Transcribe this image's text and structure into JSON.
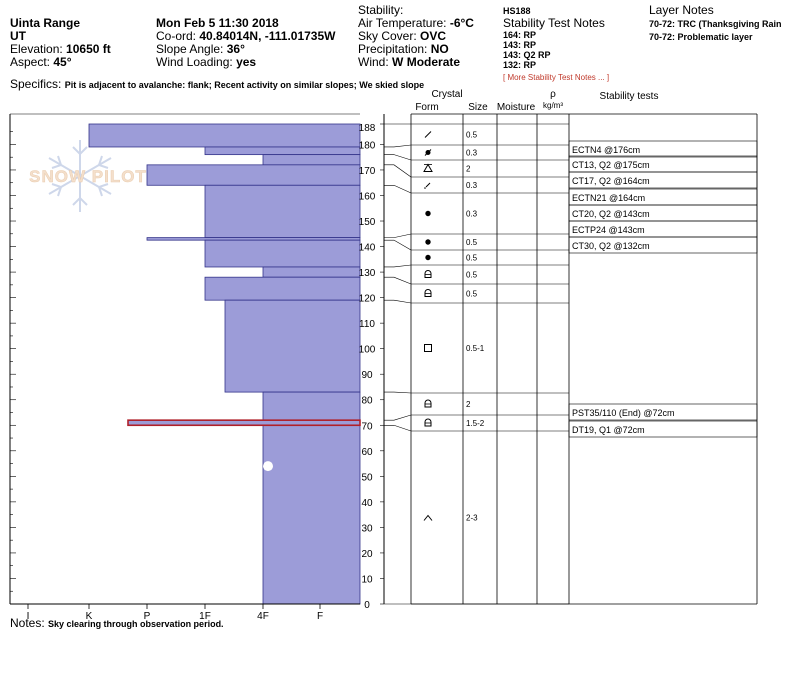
{
  "header": {
    "location": "Uinta Range",
    "state": "UT",
    "elevation_label": "Elevation:",
    "elevation": "10650 ft",
    "aspect_label": "Aspect:",
    "aspect": "45°",
    "datetime": "Mon Feb 5 11:30 2018",
    "coord_label": "Co-ord:",
    "coord": "40.84014N, -111.01735W",
    "slope_label": "Slope Angle:",
    "slope": "36°",
    "wind_loading_label": "Wind Loading:",
    "wind_loading": "yes",
    "stability_label": "Stability:",
    "air_temp_label": "Air Temperature:",
    "air_temp": "-6°C",
    "sky_label": "Sky Cover:",
    "sky": "OVC",
    "precip_label": "Precipitation:",
    "precip": "NO",
    "wind_label": "Wind:",
    "wind": "W Moderate",
    "hs": "HS188",
    "stn_title": "Stability Test Notes",
    "stn_lines": [
      "164: RP",
      "143: RP",
      "143: Q2 RP",
      "132: RP"
    ],
    "stn_more": "[ More Stability Test Notes ... ]",
    "layer_notes_title": "Layer Notes",
    "layer_notes": [
      "70-72: TRC (Thanksgiving Rain",
      "70-72: Problematic layer"
    ],
    "specifics_label": "Specifics:",
    "specifics": "Pit is adjacent to avalanche: flank; Recent activity on similar slopes; We skied slope",
    "notes_label": "Notes:",
    "notes": "Sky clearing through observation period."
  },
  "watermark": {
    "text": "SNOW PILOT",
    "icon": "snowflake-icon"
  },
  "table_headers": {
    "form": "Form",
    "crystal": "Crystal",
    "size": "Size",
    "moisture": "Moisture",
    "rho": "ρ",
    "density_unit": "kg/m³",
    "stability": "Stability tests"
  },
  "chart_data": {
    "type": "bar",
    "orientation": "horizontal",
    "y_range": [
      0,
      188
    ],
    "y_ticks": [
      0,
      10,
      20,
      30,
      40,
      50,
      60,
      70,
      80,
      90,
      100,
      110,
      120,
      130,
      140,
      150,
      160,
      170,
      180,
      188
    ],
    "hardness_scale": [
      "I",
      "K",
      "P",
      "1F",
      "4F",
      "F"
    ],
    "hardness_scale_note": "left-to-right axis labels as printed",
    "hardness_layers": [
      {
        "top": 188,
        "bottom": 179,
        "hardness": "K"
      },
      {
        "top": 179,
        "bottom": 176,
        "hardness": "1F-"
      },
      {
        "top": 176,
        "bottom": 172,
        "hardness": "4F"
      },
      {
        "top": 172,
        "bottom": 164,
        "hardness": "P-"
      },
      {
        "top": 164,
        "bottom": 143.5,
        "hardness": "1F-"
      },
      {
        "top": 143.5,
        "bottom": 142.5,
        "hardness": "P"
      },
      {
        "top": 142.5,
        "bottom": 132,
        "hardness": "1F-"
      },
      {
        "top": 132,
        "bottom": 128,
        "hardness": "4F"
      },
      {
        "top": 128,
        "bottom": 119,
        "hardness": "1F-"
      },
      {
        "top": 119,
        "bottom": 83,
        "hardness": "1F+"
      },
      {
        "top": 83,
        "bottom": 72,
        "hardness": "4F"
      },
      {
        "top": 72,
        "bottom": 70,
        "hardness": "P+"
      },
      {
        "top": 70,
        "bottom": 0,
        "hardness": "4F"
      }
    ],
    "layer_boundaries": [
      188,
      179,
      176,
      172,
      164,
      143.5,
      142.5,
      132,
      128,
      119,
      83,
      72,
      70,
      0
    ],
    "problem_layer": {
      "top": 72,
      "bottom": 70
    },
    "layers": [
      {
        "mid": 184.5,
        "form": "slash",
        "size": "0.5"
      },
      {
        "mid": 177.5,
        "form": "dot-slash",
        "size": "0.3"
      },
      {
        "mid": 174,
        "form": "triangle",
        "size": "2"
      },
      {
        "mid": 168,
        "form": "slash-small",
        "size": "0.3"
      },
      {
        "mid": 153,
        "form": "dot",
        "size": "0.3"
      },
      {
        "mid": 143,
        "form": "dot",
        "size": "0.5"
      },
      {
        "mid": 137,
        "form": "dot",
        "size": "0.5"
      },
      {
        "mid": 130,
        "form": "arch-square",
        "size": "0.5"
      },
      {
        "mid": 123.5,
        "form": "arch-square",
        "size": "0.5"
      },
      {
        "mid": 101,
        "form": "square",
        "size": "0.5-1"
      },
      {
        "mid": 77.5,
        "form": "arch-square",
        "size": "2"
      },
      {
        "mid": 71,
        "form": "arch-square",
        "size": "1.5-2"
      },
      {
        "mid": 35,
        "form": "caret",
        "size": "2-3"
      }
    ],
    "stability_tests": [
      {
        "label": "ECTN4 @176cm"
      },
      {
        "label": "CT13, Q2 @175cm"
      },
      {
        "label": "CT17, Q2 @164cm"
      },
      {
        "label": "ECTN21 @164cm"
      },
      {
        "label": "CT20, Q2 @143cm"
      },
      {
        "label": "ECTP24 @143cm"
      },
      {
        "label": "CT30, Q2 @132cm"
      },
      {
        "label": "PST35/110 (End) @72cm"
      },
      {
        "label": "DT19, Q1 @72cm"
      }
    ],
    "temperature_points": [
      {
        "depth": 54
      }
    ]
  }
}
